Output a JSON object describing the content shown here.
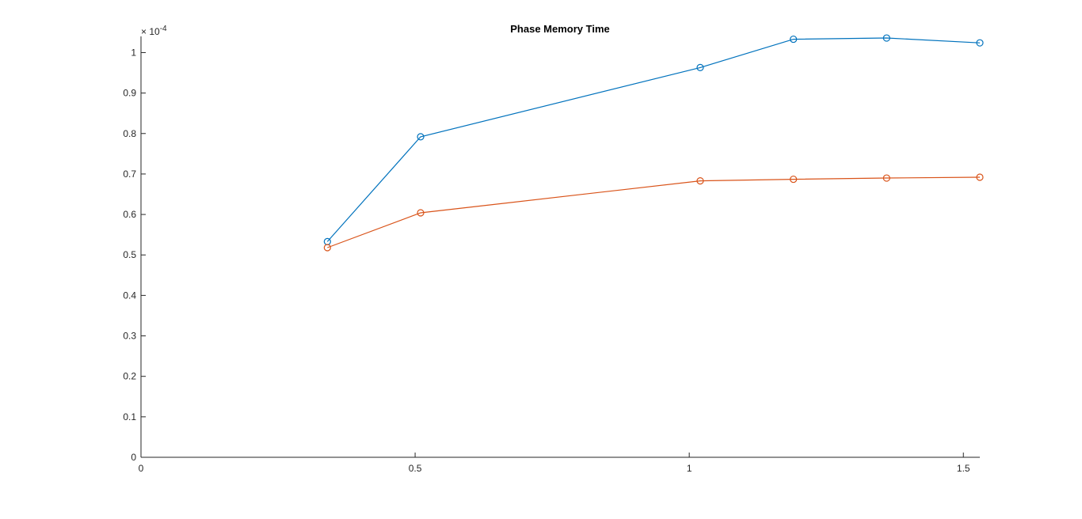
{
  "chart_data": {
    "type": "line",
    "title": "Phase Memory Time",
    "xlabel": "",
    "ylabel": "",
    "xlim": [
      0,
      1.53
    ],
    "ylim": [
      0,
      1.04
    ],
    "y_exponent_label": "× 10",
    "y_exponent_power": "-4",
    "grid": false,
    "legend": "none",
    "x_ticks": [
      {
        "value": 0,
        "label": "0"
      },
      {
        "value": 0.5,
        "label": "0.5"
      },
      {
        "value": 1,
        "label": "1"
      },
      {
        "value": 1.5,
        "label": "1.5"
      }
    ],
    "y_ticks": [
      {
        "value": 0,
        "label": "0"
      },
      {
        "value": 0.1,
        "label": "0.1"
      },
      {
        "value": 0.2,
        "label": "0.2"
      },
      {
        "value": 0.3,
        "label": "0.3"
      },
      {
        "value": 0.4,
        "label": "0.4"
      },
      {
        "value": 0.5,
        "label": "0.5"
      },
      {
        "value": 0.6,
        "label": "0.6"
      },
      {
        "value": 0.7,
        "label": "0.7"
      },
      {
        "value": 0.8,
        "label": "0.8"
      },
      {
        "value": 0.9,
        "label": "0.9"
      },
      {
        "value": 1,
        "label": "1"
      }
    ],
    "series": [
      {
        "color": "#0072BD",
        "marker": "circle",
        "x": [
          0.34,
          0.51,
          1.02,
          1.19,
          1.36,
          1.53
        ],
        "y": [
          0.533,
          0.792,
          0.963,
          1.033,
          1.036,
          1.024
        ]
      },
      {
        "color": "#D95319",
        "marker": "circle",
        "x": [
          0.34,
          0.51,
          1.02,
          1.19,
          1.36,
          1.53
        ],
        "y": [
          0.518,
          0.604,
          0.683,
          0.687,
          0.69,
          0.692
        ]
      }
    ]
  }
}
